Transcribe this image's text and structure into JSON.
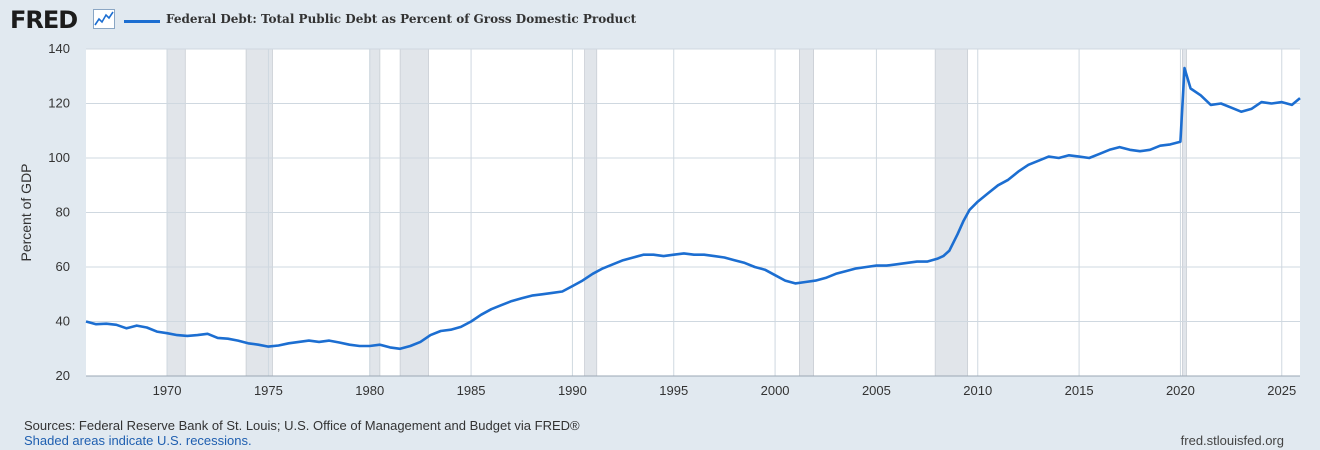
{
  "header": {
    "logo": "FRED",
    "series_title": "Federal Debt: Total Public Debt as Percent of Gross Domestic Product"
  },
  "chart_data": {
    "type": "line",
    "title": "Federal Debt: Total Public Debt as Percent of Gross Domestic Product",
    "ylabel": "Percent of GDP",
    "xlabel": "",
    "ylim": [
      20,
      140
    ],
    "xlim": [
      1966.0,
      2025.9
    ],
    "yticks": [
      20,
      40,
      60,
      80,
      100,
      120,
      140
    ],
    "xticks": [
      1970,
      1975,
      1980,
      1985,
      1990,
      1995,
      2000,
      2005,
      2010,
      2015,
      2020,
      2025
    ],
    "grid": true,
    "series": [
      {
        "name": "Federal Debt: Total Public Debt as Percent of Gross Domestic Product",
        "color": "#1c6ed1",
        "points": [
          [
            1966.0,
            40.0
          ],
          [
            1966.5,
            39.0
          ],
          [
            1967.0,
            39.2
          ],
          [
            1967.5,
            38.8
          ],
          [
            1968.0,
            37.5
          ],
          [
            1968.5,
            38.5
          ],
          [
            1969.0,
            37.8
          ],
          [
            1969.5,
            36.3
          ],
          [
            1970.0,
            35.7
          ],
          [
            1970.5,
            35.0
          ],
          [
            1971.0,
            34.7
          ],
          [
            1971.5,
            35.0
          ],
          [
            1972.0,
            35.5
          ],
          [
            1972.5,
            34.0
          ],
          [
            1973.0,
            33.7
          ],
          [
            1973.5,
            33.0
          ],
          [
            1974.0,
            32.0
          ],
          [
            1974.5,
            31.5
          ],
          [
            1975.0,
            30.8
          ],
          [
            1975.5,
            31.2
          ],
          [
            1976.0,
            32.0
          ],
          [
            1976.5,
            32.5
          ],
          [
            1977.0,
            33.0
          ],
          [
            1977.5,
            32.5
          ],
          [
            1978.0,
            33.0
          ],
          [
            1978.5,
            32.3
          ],
          [
            1979.0,
            31.5
          ],
          [
            1979.5,
            31.0
          ],
          [
            1980.0,
            31.0
          ],
          [
            1980.5,
            31.5
          ],
          [
            1981.0,
            30.5
          ],
          [
            1981.5,
            30.0
          ],
          [
            1982.0,
            31.0
          ],
          [
            1982.5,
            32.5
          ],
          [
            1983.0,
            35.0
          ],
          [
            1983.5,
            36.5
          ],
          [
            1984.0,
            37.0
          ],
          [
            1984.5,
            38.0
          ],
          [
            1985.0,
            40.0
          ],
          [
            1985.5,
            42.5
          ],
          [
            1986.0,
            44.5
          ],
          [
            1986.5,
            46.0
          ],
          [
            1987.0,
            47.5
          ],
          [
            1987.5,
            48.5
          ],
          [
            1988.0,
            49.5
          ],
          [
            1988.5,
            50.0
          ],
          [
            1989.0,
            50.5
          ],
          [
            1989.5,
            51.0
          ],
          [
            1990.0,
            53.0
          ],
          [
            1990.5,
            55.0
          ],
          [
            1991.0,
            57.5
          ],
          [
            1991.5,
            59.5
          ],
          [
            1992.0,
            61.0
          ],
          [
            1992.5,
            62.5
          ],
          [
            1993.0,
            63.5
          ],
          [
            1993.5,
            64.5
          ],
          [
            1994.0,
            64.5
          ],
          [
            1994.5,
            64.0
          ],
          [
            1995.0,
            64.5
          ],
          [
            1995.5,
            65.0
          ],
          [
            1996.0,
            64.5
          ],
          [
            1996.5,
            64.5
          ],
          [
            1997.0,
            64.0
          ],
          [
            1997.5,
            63.5
          ],
          [
            1998.0,
            62.5
          ],
          [
            1998.5,
            61.5
          ],
          [
            1999.0,
            60.0
          ],
          [
            1999.5,
            59.0
          ],
          [
            2000.0,
            57.0
          ],
          [
            2000.5,
            55.0
          ],
          [
            2001.0,
            54.0
          ],
          [
            2001.5,
            54.5
          ],
          [
            2002.0,
            55.0
          ],
          [
            2002.5,
            56.0
          ],
          [
            2003.0,
            57.5
          ],
          [
            2003.5,
            58.5
          ],
          [
            2004.0,
            59.5
          ],
          [
            2004.5,
            60.0
          ],
          [
            2005.0,
            60.5
          ],
          [
            2005.5,
            60.5
          ],
          [
            2006.0,
            61.0
          ],
          [
            2006.5,
            61.5
          ],
          [
            2007.0,
            62.0
          ],
          [
            2007.5,
            62.0
          ],
          [
            2008.0,
            63.0
          ],
          [
            2008.3,
            64.0
          ],
          [
            2008.6,
            66.0
          ],
          [
            2009.0,
            72.0
          ],
          [
            2009.3,
            77.0
          ],
          [
            2009.6,
            81.0
          ],
          [
            2010.0,
            84.0
          ],
          [
            2010.5,
            87.0
          ],
          [
            2011.0,
            90.0
          ],
          [
            2011.5,
            92.0
          ],
          [
            2012.0,
            95.0
          ],
          [
            2012.5,
            97.5
          ],
          [
            2013.0,
            99.0
          ],
          [
            2013.5,
            100.5
          ],
          [
            2014.0,
            100.0
          ],
          [
            2014.5,
            101.0
          ],
          [
            2015.0,
            100.5
          ],
          [
            2015.5,
            100.0
          ],
          [
            2016.0,
            101.5
          ],
          [
            2016.5,
            103.0
          ],
          [
            2017.0,
            104.0
          ],
          [
            2017.5,
            103.0
          ],
          [
            2018.0,
            102.5
          ],
          [
            2018.5,
            103.0
          ],
          [
            2019.0,
            104.5
          ],
          [
            2019.5,
            105.0
          ],
          [
            2020.0,
            106.0
          ],
          [
            2020.2,
            133.0
          ],
          [
            2020.5,
            125.5
          ],
          [
            2021.0,
            123.0
          ],
          [
            2021.5,
            119.5
          ],
          [
            2022.0,
            120.0
          ],
          [
            2022.5,
            118.5
          ],
          [
            2023.0,
            117.0
          ],
          [
            2023.5,
            118.0
          ],
          [
            2024.0,
            120.5
          ],
          [
            2024.5,
            120.0
          ],
          [
            2025.0,
            120.5
          ],
          [
            2025.5,
            119.5
          ],
          [
            2025.9,
            122.0
          ]
        ]
      }
    ],
    "recessions": [
      [
        1970.0,
        1970.9
      ],
      [
        1973.9,
        1975.2
      ],
      [
        1980.0,
        1980.5
      ],
      [
        1981.5,
        1982.9
      ],
      [
        1990.6,
        1991.2
      ],
      [
        2001.2,
        2001.9
      ],
      [
        2007.9,
        2009.5
      ],
      [
        2020.1,
        2020.3
      ]
    ]
  },
  "footer": {
    "sources": "Sources: Federal Reserve Bank of St. Louis; U.S. Office of Management and Budget via FRED®",
    "shaded_note": "Shaded areas indicate U.S. recessions.",
    "url": "fred.stlouisfed.org"
  },
  "colors": {
    "line": "#1c6ed1",
    "recession": "#e1e5ea",
    "plot_bg": "#ffffff",
    "grid": "#cfd8e0",
    "page_bg": "#e1e9f0"
  }
}
